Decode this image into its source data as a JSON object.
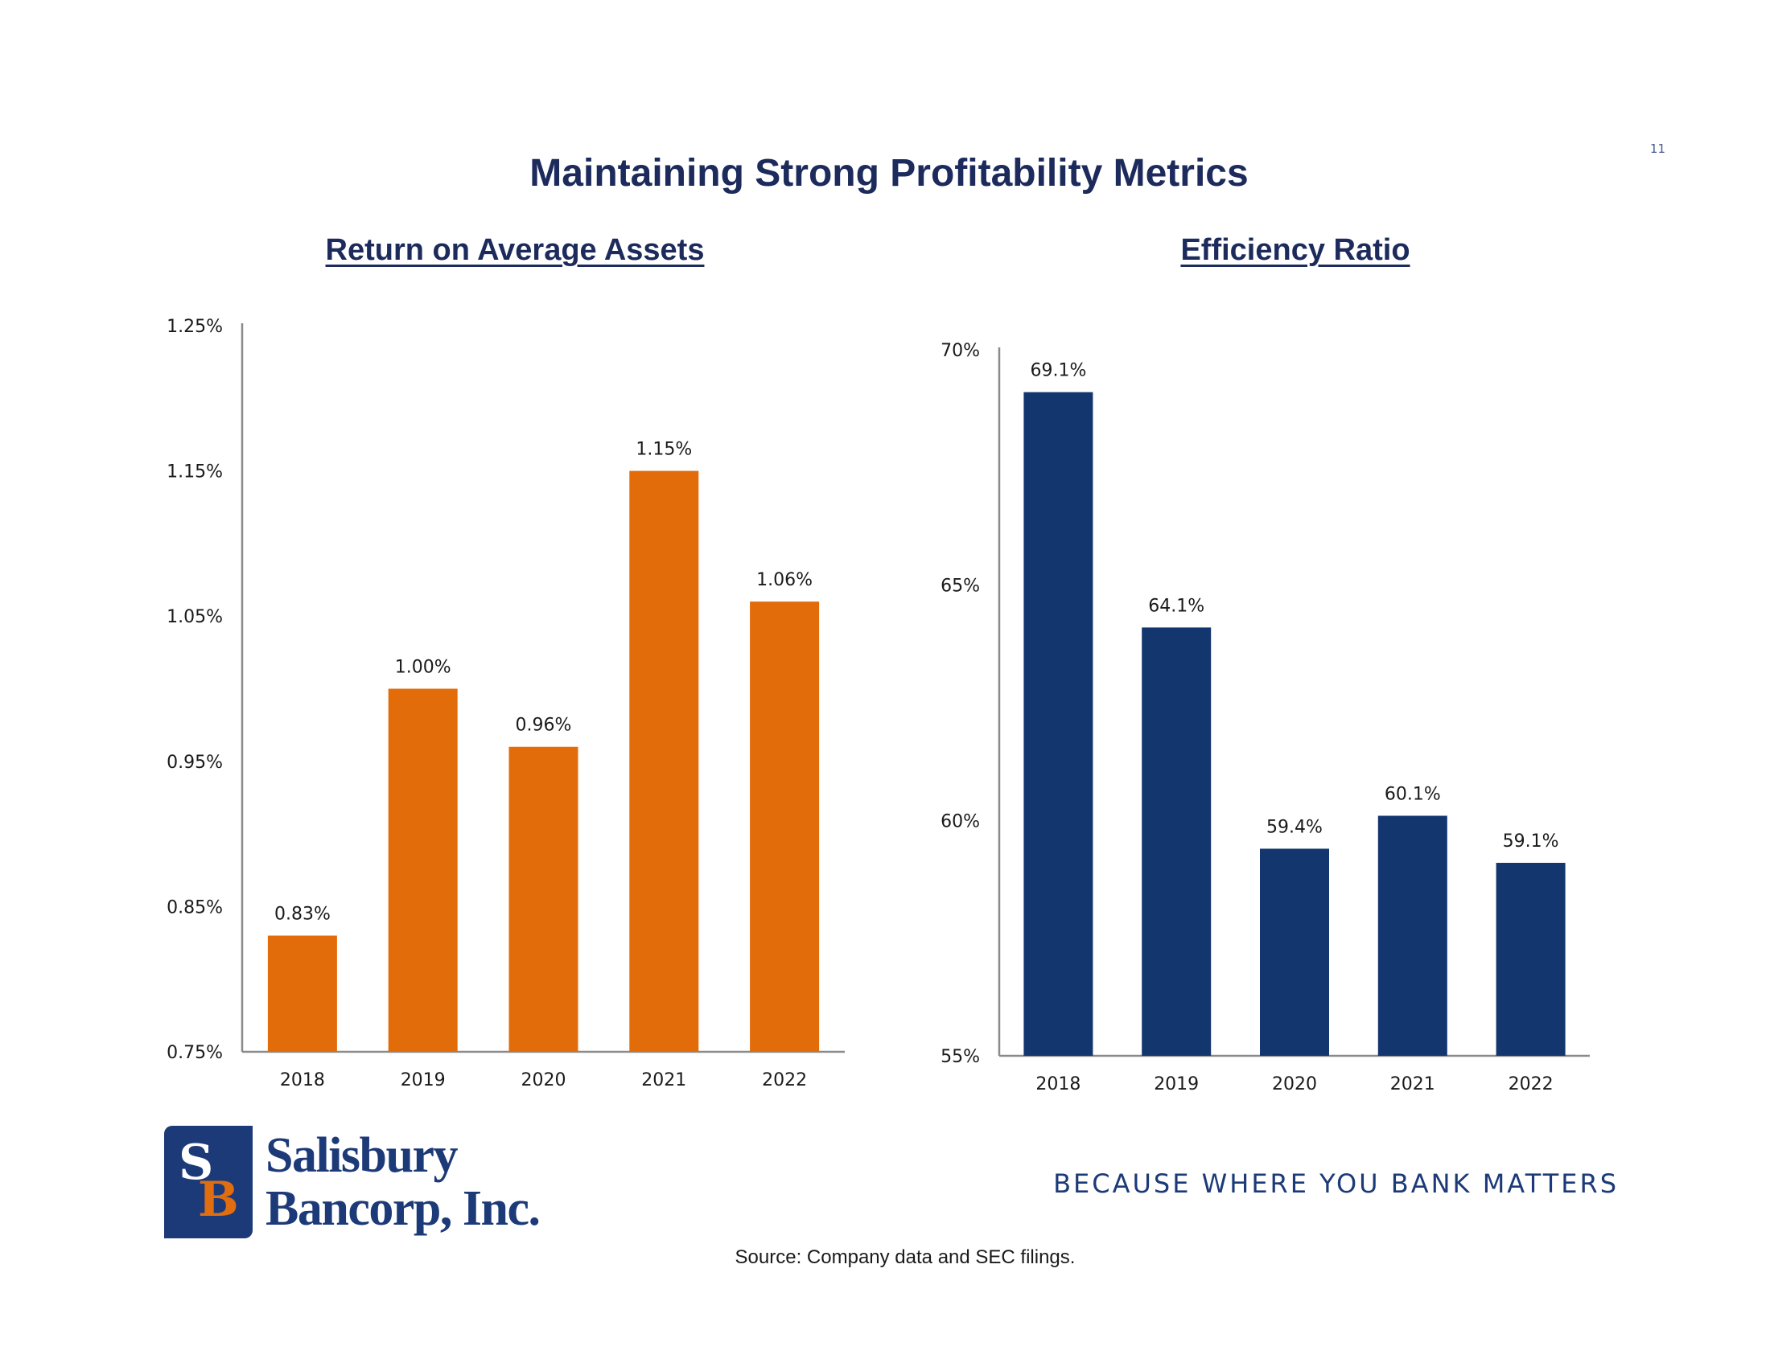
{
  "page": {
    "number": "11",
    "title": "Maintaining Strong Profitability Metrics"
  },
  "colors": {
    "roa_bar": "#e36c0a",
    "efficiency_bar": "#14366f",
    "title": "#1c2a5c"
  },
  "chart_data": [
    {
      "type": "bar",
      "title": "Return on Average Assets",
      "categories": [
        "2018",
        "2019",
        "2020",
        "2021",
        "2022"
      ],
      "values": [
        0.83,
        1.0,
        0.96,
        1.15,
        1.06
      ],
      "data_labels": [
        "0.83%",
        "1.00%",
        "0.96%",
        "1.15%",
        "1.06%"
      ],
      "ylim": [
        0.75,
        1.25
      ],
      "y_ticks": [
        0.75,
        0.85,
        0.95,
        1.05,
        1.15,
        1.25
      ],
      "y_tick_labels": [
        "0.75%",
        "0.85%",
        "0.95%",
        "1.05%",
        "1.15%",
        "1.25%"
      ],
      "xlabel": "",
      "ylabel": "",
      "grid": false
    },
    {
      "type": "bar",
      "title": "Efficiency Ratio",
      "categories": [
        "2018",
        "2019",
        "2020",
        "2021",
        "2022"
      ],
      "values": [
        69.1,
        64.1,
        59.4,
        60.1,
        59.1
      ],
      "data_labels": [
        "69.1%",
        "64.1%",
        "59.4%",
        "60.1%",
        "59.1%"
      ],
      "ylim": [
        55,
        70
      ],
      "y_ticks": [
        55,
        60,
        65,
        70
      ],
      "y_tick_labels": [
        "55%",
        "60%",
        "65%",
        "70%"
      ],
      "xlabel": "",
      "ylabel": "",
      "grid": false
    }
  ],
  "logo": {
    "line1": "Salisbury",
    "line2": "Bancorp, Inc.",
    "mark_s": "S",
    "mark_b": "B"
  },
  "tagline": "BECAUSE WHERE YOU BANK MATTERS",
  "source": "Source: Company data and SEC filings."
}
